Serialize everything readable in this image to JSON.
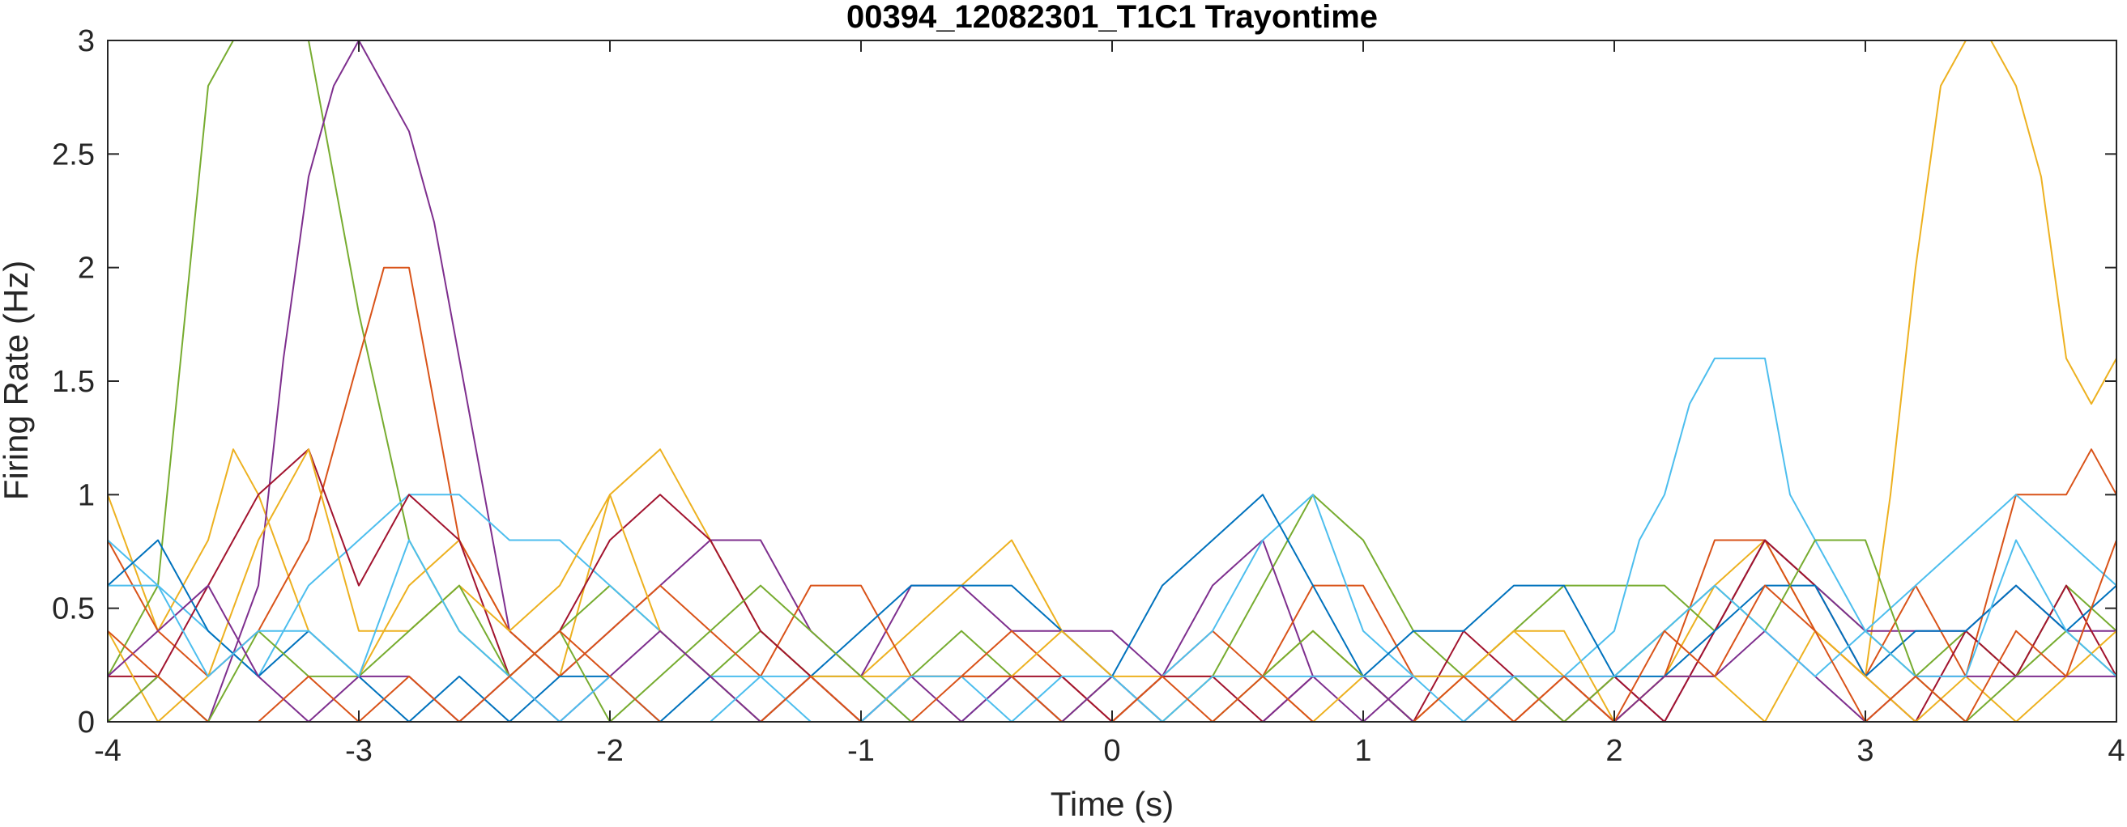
{
  "chart_data": {
    "type": "line",
    "title": "00394_12082301_T1C1 Trayontime",
    "xlabel": "Time (s)",
    "ylabel": "Firing Rate (Hz)",
    "xlim": [
      -4,
      4
    ],
    "ylim": [
      0,
      3
    ],
    "grid": false,
    "legend": "none",
    "xticks": [
      -4,
      -3,
      -2,
      -1,
      0,
      1,
      2,
      3,
      4
    ],
    "xtick_labels": [
      "-4",
      "-3",
      "-2",
      "-1",
      "0",
      "1",
      "2",
      "3",
      "4"
    ],
    "yticks": [
      0,
      0.5,
      1,
      1.5,
      2,
      2.5,
      3
    ],
    "ytick_labels": [
      "0",
      "0.5",
      "1",
      "1.5",
      "2",
      "2.5",
      "3"
    ],
    "series": [
      {
        "color": "#EDB120",
        "x": [
          -4.0,
          -3.8,
          -3.6,
          -3.5,
          -3.4,
          -3.2,
          -3.0,
          -2.8,
          -2.6,
          -2.4,
          -2.2,
          -2.0,
          -1.8,
          -1.6,
          -1.4,
          -1.2,
          -1.0,
          -0.8,
          -0.6,
          -0.4,
          -0.2,
          0.0,
          0.2,
          0.4,
          0.6,
          0.8,
          1.0,
          1.2,
          1.4,
          1.6,
          1.8,
          2.0,
          2.2,
          2.4,
          2.6,
          2.8,
          3.0,
          3.1,
          3.2,
          3.3,
          3.4,
          3.5,
          3.6,
          3.7,
          3.8,
          3.9,
          4.0
        ],
        "y": [
          1.0,
          0.4,
          0.8,
          1.2,
          1.0,
          0.4,
          0.2,
          0.6,
          0.8,
          0.4,
          0.2,
          1.0,
          1.2,
          0.8,
          0.4,
          0.2,
          0.2,
          0.4,
          0.6,
          0.8,
          0.4,
          0.2,
          0.2,
          0.2,
          0.2,
          0.4,
          0.2,
          0.0,
          0.2,
          0.4,
          0.2,
          0.0,
          0.2,
          0.6,
          0.8,
          0.4,
          0.2,
          1.0,
          2.0,
          2.8,
          3.0,
          3.0,
          2.8,
          2.4,
          1.6,
          1.4,
          1.6
        ]
      },
      {
        "color": "#77AC30",
        "x": [
          -4.0,
          -3.8,
          -3.6,
          -3.5,
          -3.4,
          -3.2,
          -3.0,
          -2.8,
          -2.6,
          -2.4,
          -2.2,
          -2.0,
          -1.8,
          -1.6,
          -1.4,
          -1.2,
          -1.0,
          -0.8,
          -0.6,
          -0.4,
          -0.2,
          0.0,
          0.2,
          0.4,
          0.6,
          0.8,
          1.0,
          1.2,
          1.4,
          1.6,
          1.8,
          2.0,
          2.2,
          2.4,
          2.6,
          2.8,
          3.0,
          3.2,
          3.4,
          3.6,
          3.8,
          4.0
        ],
        "y": [
          0.2,
          0.6,
          2.8,
          3.0,
          3.0,
          3.0,
          1.8,
          0.8,
          0.4,
          0.2,
          0.4,
          0.6,
          0.4,
          0.2,
          0.4,
          0.2,
          0.0,
          0.2,
          0.4,
          0.2,
          0.0,
          0.2,
          0.0,
          0.2,
          0.6,
          1.0,
          0.8,
          0.4,
          0.2,
          0.4,
          0.6,
          0.6,
          0.6,
          0.4,
          0.8,
          0.6,
          0.4,
          0.2,
          0.4,
          0.2,
          0.6,
          0.4
        ]
      },
      {
        "color": "#7E2F8E",
        "x": [
          -4.0,
          -3.8,
          -3.6,
          -3.4,
          -3.3,
          -3.2,
          -3.1,
          -3.0,
          -2.9,
          -2.8,
          -2.7,
          -2.6,
          -2.4,
          -2.2,
          -2.0,
          -1.8,
          -1.6,
          -1.4,
          -1.2,
          -1.0,
          -0.8,
          -0.6,
          -0.4,
          -0.2,
          0.0,
          0.2,
          0.4,
          0.6,
          0.8,
          1.0,
          1.2,
          1.4,
          1.6,
          1.8,
          2.0,
          2.2,
          2.4,
          2.6,
          2.8,
          3.0,
          3.2,
          3.4,
          3.6,
          3.8,
          4.0
        ],
        "y": [
          0.0,
          0.2,
          0.0,
          0.6,
          1.6,
          2.4,
          2.8,
          3.0,
          2.8,
          2.6,
          2.2,
          1.6,
          0.4,
          0.2,
          0.4,
          0.6,
          0.8,
          0.8,
          0.4,
          0.2,
          0.6,
          0.6,
          0.4,
          0.4,
          0.4,
          0.2,
          0.6,
          0.8,
          0.2,
          0.0,
          0.2,
          0.2,
          0.2,
          0.2,
          0.2,
          0.0,
          0.4,
          0.8,
          0.6,
          0.4,
          0.4,
          0.4,
          0.6,
          0.4,
          0.4
        ]
      },
      {
        "color": "#D95319",
        "x": [
          -4.0,
          -3.8,
          -3.6,
          -3.4,
          -3.2,
          -3.0,
          -2.9,
          -2.8,
          -2.7,
          -2.6,
          -2.4,
          -2.2,
          -2.0,
          -1.8,
          -1.6,
          -1.4,
          -1.2,
          -1.0,
          -0.8,
          -0.6,
          -0.4,
          -0.2,
          0.0,
          0.2,
          0.4,
          0.6,
          0.8,
          1.0,
          1.2,
          1.4,
          1.6,
          1.8,
          2.0,
          2.2,
          2.4,
          2.6,
          2.8,
          3.0,
          3.2,
          3.4,
          3.6,
          3.8,
          3.9,
          4.0
        ],
        "y": [
          0.8,
          0.4,
          0.2,
          0.4,
          0.8,
          1.6,
          2.0,
          2.0,
          1.4,
          0.8,
          0.4,
          0.2,
          0.4,
          0.6,
          0.4,
          0.2,
          0.6,
          0.6,
          0.2,
          0.2,
          0.4,
          0.2,
          0.0,
          0.2,
          0.4,
          0.2,
          0.6,
          0.6,
          0.2,
          0.2,
          0.0,
          0.2,
          0.0,
          0.2,
          0.8,
          0.8,
          0.4,
          0.2,
          0.6,
          0.2,
          1.0,
          1.0,
          1.2,
          1.0
        ]
      },
      {
        "color": "#4DBEEE",
        "x": [
          -4.0,
          -3.8,
          -3.6,
          -3.4,
          -3.2,
          -3.0,
          -2.8,
          -2.6,
          -2.4,
          -2.2,
          -2.0,
          -1.8,
          -1.6,
          -1.4,
          -1.2,
          -1.0,
          -0.8,
          -0.6,
          -0.4,
          -0.2,
          0.0,
          0.2,
          0.4,
          0.6,
          0.8,
          1.0,
          1.2,
          1.4,
          1.6,
          1.8,
          2.0,
          2.1,
          2.2,
          2.3,
          2.4,
          2.5,
          2.6,
          2.7,
          2.8,
          3.0,
          3.2,
          3.4,
          3.6,
          3.8,
          4.0
        ],
        "y": [
          0.8,
          0.6,
          0.4,
          0.2,
          0.6,
          0.8,
          1.0,
          1.0,
          0.8,
          0.8,
          0.6,
          0.4,
          0.2,
          0.2,
          0.2,
          0.2,
          0.0,
          0.0,
          0.2,
          0.0,
          0.0,
          0.2,
          0.4,
          0.8,
          1.0,
          0.4,
          0.2,
          0.2,
          0.2,
          0.2,
          0.4,
          0.8,
          1.0,
          1.4,
          1.6,
          1.6,
          1.6,
          1.0,
          0.8,
          0.4,
          0.6,
          0.8,
          1.0,
          0.8,
          0.6
        ]
      },
      {
        "color": "#A2142F",
        "x": [
          -4.0,
          -3.8,
          -3.6,
          -3.4,
          -3.2,
          -3.0,
          -2.8,
          -2.6,
          -2.4,
          -2.2,
          -2.0,
          -1.8,
          -1.6,
          -1.4,
          -1.2,
          -1.0,
          -0.8,
          -0.6,
          -0.4,
          -0.2,
          0.0,
          0.2,
          0.4,
          0.6,
          0.8,
          1.0,
          1.2,
          1.4,
          1.6,
          1.8,
          2.0,
          2.2,
          2.4,
          2.6,
          2.8,
          3.0,
          3.2,
          3.4,
          3.6,
          3.8,
          4.0
        ],
        "y": [
          0.2,
          0.2,
          0.6,
          1.0,
          1.2,
          0.6,
          1.0,
          0.8,
          0.2,
          0.4,
          0.8,
          1.0,
          0.8,
          0.4,
          0.2,
          0.0,
          0.2,
          0.2,
          0.2,
          0.2,
          0.0,
          0.2,
          0.2,
          0.0,
          0.2,
          0.2,
          0.0,
          0.4,
          0.2,
          0.0,
          0.2,
          0.0,
          0.4,
          0.8,
          0.6,
          0.2,
          0.0,
          0.4,
          0.2,
          0.6,
          0.2
        ]
      },
      {
        "color": "#0072BD",
        "x": [
          -4.0,
          -3.8,
          -3.6,
          -3.4,
          -3.2,
          -3.0,
          -2.8,
          -2.6,
          -2.4,
          -2.2,
          -2.0,
          -1.8,
          -1.6,
          -1.4,
          -1.2,
          -1.0,
          -0.8,
          -0.6,
          -0.4,
          -0.2,
          0.0,
          0.2,
          0.4,
          0.6,
          0.8,
          1.0,
          1.2,
          1.4,
          1.6,
          1.8,
          2.0,
          2.2,
          2.4,
          2.6,
          2.8,
          3.0,
          3.2,
          3.4,
          3.6,
          3.8,
          4.0
        ],
        "y": [
          0.6,
          0.8,
          0.4,
          0.2,
          0.4,
          0.2,
          0.0,
          0.2,
          0.0,
          0.2,
          0.2,
          0.0,
          0.2,
          0.0,
          0.2,
          0.4,
          0.6,
          0.6,
          0.6,
          0.4,
          0.2,
          0.6,
          0.8,
          1.0,
          0.6,
          0.2,
          0.4,
          0.4,
          0.6,
          0.6,
          0.2,
          0.2,
          0.4,
          0.6,
          0.6,
          0.2,
          0.4,
          0.4,
          0.6,
          0.4,
          0.6
        ]
      },
      {
        "color": "#EDB120",
        "x": [
          -4.0,
          -3.8,
          -3.6,
          -3.4,
          -3.2,
          -3.0,
          -2.8,
          -2.6,
          -2.4,
          -2.2,
          -2.0,
          -1.8,
          -1.6,
          -1.4,
          -1.2,
          -1.0,
          -0.8,
          -0.6,
          -0.4,
          -0.2,
          0.0,
          0.2,
          0.4,
          0.6,
          0.8,
          1.0,
          1.2,
          1.4,
          1.6,
          1.8,
          2.0,
          2.2,
          2.4,
          2.6,
          2.8,
          3.0,
          3.2,
          3.4,
          3.6,
          3.8,
          4.0
        ],
        "y": [
          0.4,
          0.0,
          0.2,
          0.8,
          1.2,
          0.4,
          0.4,
          0.6,
          0.4,
          0.6,
          1.0,
          0.4,
          0.2,
          0.0,
          0.2,
          0.2,
          0.2,
          0.2,
          0.2,
          0.4,
          0.2,
          0.0,
          0.2,
          0.2,
          0.0,
          0.2,
          0.2,
          0.2,
          0.4,
          0.4,
          0.0,
          0.2,
          0.2,
          0.0,
          0.4,
          0.2,
          0.0,
          0.2,
          0.0,
          0.2,
          0.4
        ]
      },
      {
        "color": "#77AC30",
        "x": [
          -4.0,
          -3.8,
          -3.6,
          -3.4,
          -3.2,
          -3.0,
          -2.8,
          -2.6,
          -2.4,
          -2.2,
          -2.0,
          -1.8,
          -1.6,
          -1.4,
          -1.2,
          -1.0,
          -0.8,
          -0.6,
          -0.4,
          -0.2,
          0.0,
          0.2,
          0.4,
          0.6,
          0.8,
          1.0,
          1.2,
          1.4,
          1.6,
          1.8,
          2.0,
          2.2,
          2.4,
          2.6,
          2.8,
          3.0,
          3.2,
          3.4,
          3.6,
          3.8,
          4.0
        ],
        "y": [
          0.0,
          0.2,
          0.0,
          0.4,
          0.2,
          0.2,
          0.4,
          0.6,
          0.2,
          0.4,
          0.0,
          0.2,
          0.4,
          0.6,
          0.4,
          0.2,
          0.0,
          0.0,
          0.0,
          0.0,
          0.0,
          0.0,
          0.0,
          0.2,
          0.4,
          0.2,
          0.0,
          0.0,
          0.2,
          0.0,
          0.2,
          0.4,
          0.6,
          0.4,
          0.8,
          0.8,
          0.2,
          0.0,
          0.2,
          0.4,
          0.2
        ]
      },
      {
        "color": "#7E2F8E",
        "x": [
          -4.0,
          -3.8,
          -3.6,
          -3.4,
          -3.2,
          -3.0,
          -2.8,
          -2.6,
          -2.4,
          -2.2,
          -2.0,
          -1.8,
          -1.6,
          -1.4,
          -1.2,
          -1.0,
          -0.8,
          -0.6,
          -0.4,
          -0.2,
          0.0,
          0.2,
          0.4,
          0.6,
          0.8,
          1.0,
          1.2,
          1.4,
          1.6,
          1.8,
          2.0,
          2.2,
          2.4,
          2.6,
          2.8,
          3.0,
          3.2,
          3.4,
          3.6,
          3.8,
          4.0
        ],
        "y": [
          0.2,
          0.4,
          0.6,
          0.2,
          0.0,
          0.2,
          0.2,
          0.0,
          0.2,
          0.0,
          0.2,
          0.4,
          0.2,
          0.0,
          0.2,
          0.0,
          0.2,
          0.0,
          0.2,
          0.0,
          0.2,
          0.0,
          0.0,
          0.0,
          0.2,
          0.2,
          0.0,
          0.0,
          0.2,
          0.2,
          0.0,
          0.2,
          0.2,
          0.4,
          0.2,
          0.0,
          0.2,
          0.2,
          0.2,
          0.2,
          0.2
        ]
      },
      {
        "color": "#4DBEEE",
        "x": [
          -4.0,
          -3.8,
          -3.6,
          -3.4,
          -3.2,
          -3.0,
          -2.8,
          -2.6,
          -2.4,
          -2.2,
          -2.0,
          -1.8,
          -1.6,
          -1.4,
          -1.2,
          -1.0,
          -0.8,
          -0.6,
          -0.4,
          -0.2,
          0.0,
          0.2,
          0.4,
          0.6,
          0.8,
          1.0,
          1.2,
          1.4,
          1.6,
          1.8,
          2.0,
          2.2,
          2.4,
          2.6,
          2.8,
          3.0,
          3.2,
          3.4,
          3.6,
          3.8,
          4.0
        ],
        "y": [
          0.6,
          0.6,
          0.2,
          0.4,
          0.4,
          0.2,
          0.8,
          0.4,
          0.2,
          0.0,
          0.2,
          0.0,
          0.0,
          0.2,
          0.0,
          0.0,
          0.2,
          0.2,
          0.0,
          0.2,
          0.2,
          0.0,
          0.2,
          0.2,
          0.2,
          0.2,
          0.2,
          0.0,
          0.2,
          0.2,
          0.2,
          0.4,
          0.6,
          0.4,
          0.2,
          0.4,
          0.2,
          0.2,
          0.8,
          0.4,
          0.2
        ]
      },
      {
        "color": "#D95319",
        "x": [
          -4.0,
          -3.8,
          -3.6,
          -3.4,
          -3.2,
          -3.0,
          -2.8,
          -2.6,
          -2.4,
          -2.2,
          -2.0,
          -1.8,
          -1.6,
          -1.4,
          -1.2,
          -1.0,
          -0.8,
          -0.6,
          -0.4,
          -0.2,
          0.0,
          0.2,
          0.4,
          0.6,
          0.8,
          1.0,
          1.2,
          1.4,
          1.6,
          1.8,
          2.0,
          2.2,
          2.4,
          2.6,
          2.8,
          3.0,
          3.2,
          3.4,
          3.6,
          3.8,
          4.0
        ],
        "y": [
          0.4,
          0.2,
          0.0,
          0.0,
          0.2,
          0.0,
          0.2,
          0.0,
          0.2,
          0.4,
          0.2,
          0.0,
          0.0,
          0.0,
          0.2,
          0.0,
          0.0,
          0.2,
          0.2,
          0.0,
          0.0,
          0.2,
          0.0,
          0.2,
          0.0,
          0.0,
          0.0,
          0.2,
          0.0,
          0.2,
          0.0,
          0.4,
          0.2,
          0.6,
          0.4,
          0.0,
          0.2,
          0.0,
          0.4,
          0.2,
          0.8
        ]
      }
    ]
  }
}
